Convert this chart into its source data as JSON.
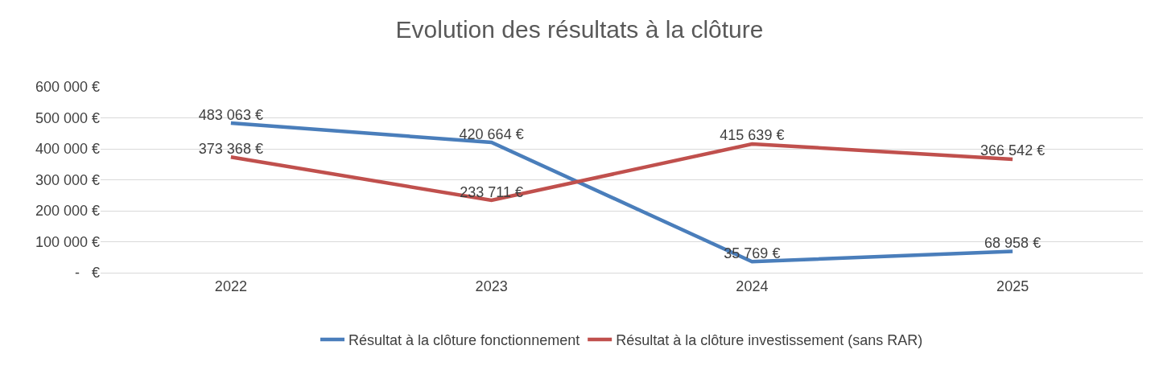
{
  "chart_data": {
    "type": "line",
    "title": "Evolution des résultats à la clôture",
    "categories": [
      "2022",
      "2023",
      "2024",
      "2025"
    ],
    "series": [
      {
        "name": "Résultat à la clôture fonctionnement",
        "color": "#4a7ebb",
        "values": [
          483063,
          420664,
          35769,
          68958
        ],
        "value_labels": [
          "483 063 €",
          "420 664 €",
          "35 769 €",
          "68 958 €"
        ]
      },
      {
        "name": "Résultat à la clôture investissement (sans RAR)",
        "color": "#c0504d",
        "values": [
          373368,
          233711,
          415639,
          366542
        ],
        "value_labels": [
          "373 368 €",
          "233 711 €",
          "415 639 €",
          "366 542 €"
        ]
      }
    ],
    "ylim": [
      0,
      600000
    ],
    "yticks": [
      {
        "value": 0,
        "label": "-   €"
      },
      {
        "value": 100000,
        "label": "100 000 €"
      },
      {
        "value": 200000,
        "label": "200 000 €"
      },
      {
        "value": 300000,
        "label": "300 000 €"
      },
      {
        "value": 400000,
        "label": "400 000 €"
      },
      {
        "value": 500000,
        "label": "500 000 €"
      },
      {
        "value": 600000,
        "label": "600 000 €"
      }
    ],
    "grid": "y",
    "legend": "bottom",
    "marker": "none",
    "line_style": "solid"
  }
}
